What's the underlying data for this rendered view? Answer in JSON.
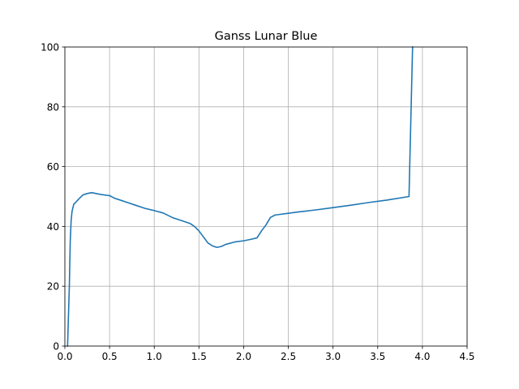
{
  "chart_data": {
    "type": "line",
    "title": "Ganss Lunar Blue",
    "xlabel": "",
    "ylabel": "",
    "xlim": [
      0.0,
      4.5
    ],
    "ylim": [
      0,
      100
    ],
    "grid": true,
    "x_ticks": [
      "0.0",
      "0.5",
      "1.0",
      "1.5",
      "2.0",
      "2.5",
      "3.0",
      "3.5",
      "4.0",
      "4.5"
    ],
    "y_ticks": [
      "0",
      "20",
      "40",
      "60",
      "80",
      "100"
    ],
    "colors": {
      "line": "#1f77b4",
      "grid": "#b0b0b0",
      "axes": "#000000"
    },
    "series": [
      {
        "x": [
          0.03,
          0.05,
          0.06,
          0.07,
          0.08,
          0.1,
          0.12,
          0.15,
          0.2,
          0.25,
          0.3,
          0.35,
          0.4,
          0.45,
          0.5,
          0.55,
          0.6,
          0.7,
          0.8,
          0.9,
          1.0,
          1.1,
          1.2,
          1.3,
          1.4,
          1.45,
          1.5,
          1.55,
          1.6,
          1.65,
          1.7,
          1.75,
          1.8,
          1.9,
          2.0,
          2.05,
          2.1,
          2.15,
          2.2,
          2.25,
          2.3,
          2.35,
          2.4,
          2.5,
          2.6,
          2.8,
          3.0,
          3.2,
          3.4,
          3.6,
          3.85,
          3.87,
          3.89
        ],
        "y": [
          0,
          20,
          35,
          42,
          45,
          47.5,
          48,
          49,
          50.5,
          51,
          51.3,
          51,
          50.7,
          50.5,
          50.3,
          49.5,
          49,
          48,
          47,
          46,
          45.3,
          44.5,
          43,
          42,
          41,
          40,
          38.5,
          36.5,
          34.5,
          33.5,
          33,
          33.3,
          34,
          34.8,
          35.2,
          35.5,
          35.8,
          36.2,
          38.5,
          40.5,
          43,
          43.8,
          44,
          44.4,
          44.8,
          45.5,
          46.3,
          47.1,
          48,
          48.8,
          50,
          75,
          100
        ]
      }
    ]
  }
}
